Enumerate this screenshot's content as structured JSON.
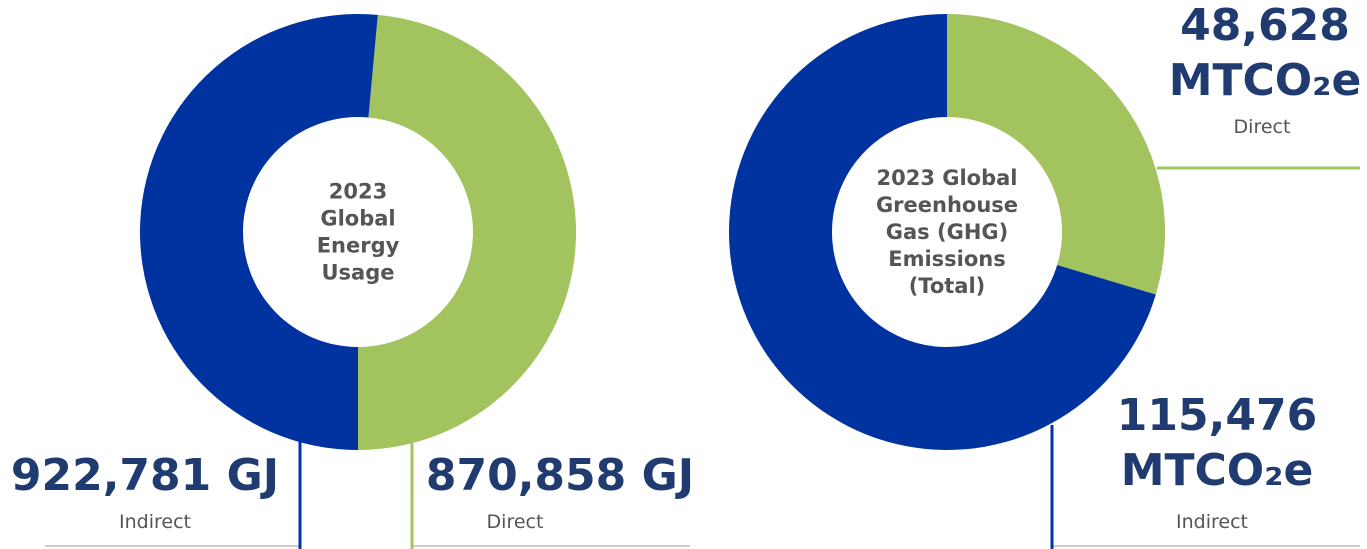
{
  "chart_data": [
    {
      "type": "pie",
      "title_lines": [
        "2023",
        "Global",
        "Energy",
        "Usage"
      ],
      "categories": [
        "Direct",
        "Indirect"
      ],
      "values": [
        870858,
        922781
      ],
      "value_labels": [
        "870,858",
        "922,781"
      ],
      "unit": "GJ",
      "colors": [
        "#a2c35e",
        "#0033a0"
      ]
    },
    {
      "type": "pie",
      "title_lines": [
        "2023 Global",
        "Greenhouse",
        "Gas (GHG)",
        "Emissions",
        "(Total)"
      ],
      "categories": [
        "Direct",
        "Indirect"
      ],
      "values": [
        48628,
        115476
      ],
      "value_labels": [
        "48,628",
        "115,476"
      ],
      "unit": "MTCO₂e",
      "colors": [
        "#a2c35e",
        "#0033a0"
      ]
    }
  ]
}
